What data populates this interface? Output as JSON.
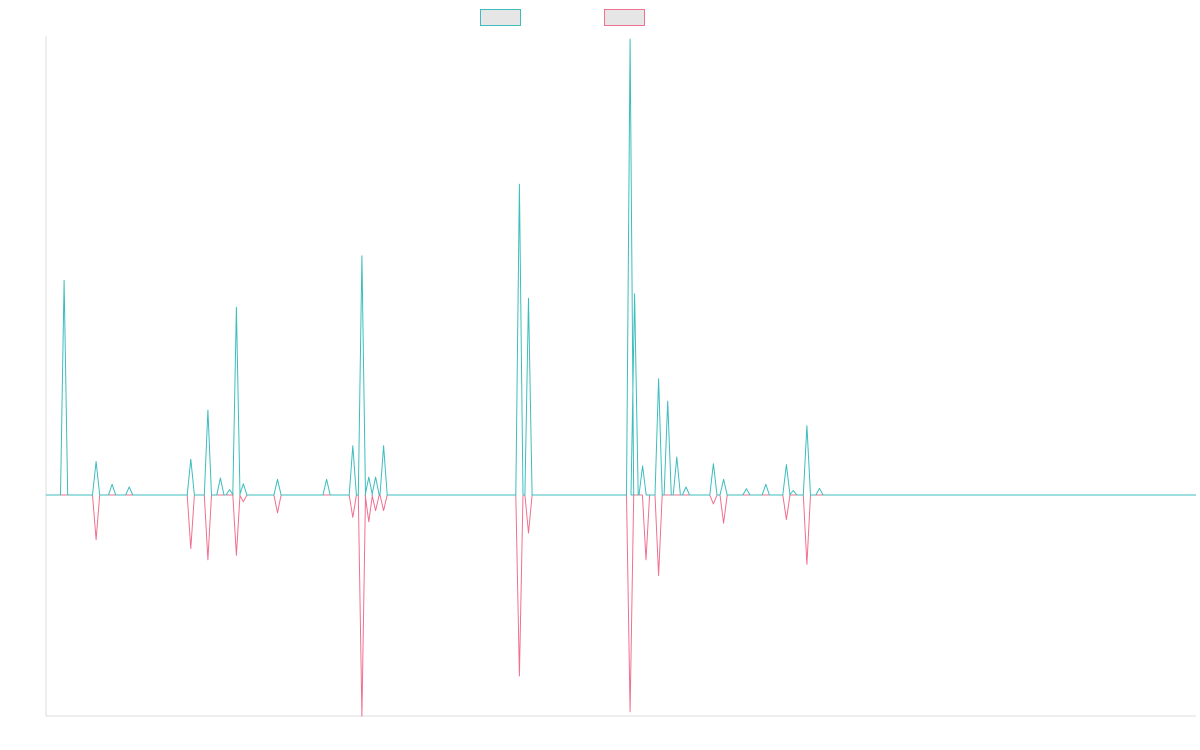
{
  "chart_data": {
    "type": "line",
    "title": "",
    "xlabel": "",
    "ylabel": "",
    "x_domain": [
      0,
      1000
    ],
    "ylim": [
      -1,
      1.03
    ],
    "grid": false,
    "legend_position": "top-center",
    "series": [
      {
        "color": "#3dbdbd",
        "fill": "#e6e6e6",
        "direction": "up",
        "peaks": [
          [
            8,
            0.48
          ],
          [
            36,
            0.075
          ],
          [
            50,
            0.024
          ],
          [
            65,
            0.018
          ],
          [
            119,
            0.08
          ],
          [
            134,
            0.19
          ],
          [
            145,
            0.038
          ],
          [
            153,
            0.012
          ],
          [
            159,
            0.42
          ],
          [
            165,
            0.025
          ],
          [
            195,
            0.035
          ],
          [
            238,
            0.035
          ],
          [
            261,
            0.11
          ],
          [
            269,
            0.535
          ],
          [
            275,
            0.04
          ],
          [
            281,
            0.04
          ],
          [
            288,
            0.11
          ],
          [
            407,
            0.695
          ],
          [
            415,
            0.44
          ],
          [
            504,
            1.02
          ],
          [
            508,
            0.45
          ],
          [
            515,
            0.065
          ],
          [
            529,
            0.26
          ],
          [
            537,
            0.21
          ],
          [
            545,
            0.085
          ],
          [
            553,
            0.018
          ],
          [
            577,
            0.07
          ],
          [
            586,
            0.035
          ],
          [
            606,
            0.014
          ],
          [
            623,
            0.024
          ],
          [
            641,
            0.068
          ],
          [
            647,
            0.01
          ],
          [
            659,
            0.155
          ],
          [
            670,
            0.015
          ]
        ]
      },
      {
        "color": "#f0708f",
        "fill": "#e6e6e6",
        "direction": "down",
        "peaks": [
          [
            36,
            0.1
          ],
          [
            119,
            0.12
          ],
          [
            134,
            0.145
          ],
          [
            159,
            0.135
          ],
          [
            165,
            0.015
          ],
          [
            195,
            0.04
          ],
          [
            261,
            0.05
          ],
          [
            269,
            0.495
          ],
          [
            275,
            0.06
          ],
          [
            281,
            0.035
          ],
          [
            288,
            0.035
          ],
          [
            407,
            0.405
          ],
          [
            415,
            0.085
          ],
          [
            504,
            0.485
          ],
          [
            518,
            0.145
          ],
          [
            529,
            0.18
          ],
          [
            577,
            0.02
          ],
          [
            586,
            0.063
          ],
          [
            641,
            0.055
          ],
          [
            659,
            0.155
          ]
        ]
      }
    ]
  }
}
